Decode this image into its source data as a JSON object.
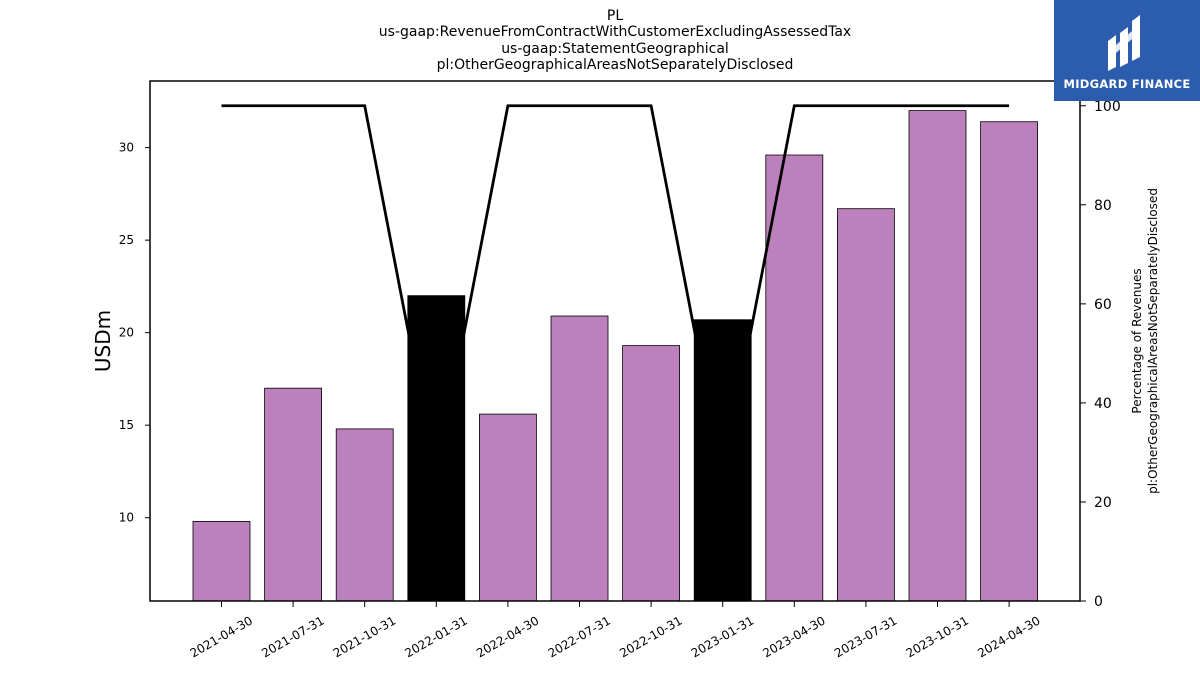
{
  "chart_data": {
    "type": "bar",
    "title_lines": [
      "PL",
      "us-gaap:RevenueFromContractWithCustomerExcludingAssessedTax",
      "us-gaap:StatementGeographical",
      "pl:OtherGeographicalAreasNotSeparatelyDisclosed"
    ],
    "categories": [
      "2021-04-30",
      "2021-07-31",
      "2021-10-31",
      "2022-01-31",
      "2022-04-30",
      "2022-07-31",
      "2022-10-31",
      "2023-01-31",
      "2023-04-30",
      "2023-07-31",
      "2023-10-31",
      "2024-04-30"
    ],
    "values": [
      9.8,
      17.0,
      14.8,
      22.0,
      15.6,
      20.9,
      19.3,
      20.7,
      29.6,
      26.7,
      32.0,
      31.4
    ],
    "bar_colors": [
      "#bc80bd",
      "#bc80bd",
      "#bc80bd",
      "#000000",
      "#bc80bd",
      "#bc80bd",
      "#bc80bd",
      "#000000",
      "#bc80bd",
      "#bc80bd",
      "#bc80bd",
      "#bc80bd"
    ],
    "line": {
      "values": [
        100,
        100,
        100,
        25,
        100,
        100,
        100,
        25,
        100,
        100,
        100,
        100
      ],
      "color": "#000000"
    },
    "ylabel": "USDm",
    "ylim": [
      5.5,
      33.6
    ],
    "yticks": [
      10,
      15,
      20,
      25,
      30
    ],
    "ylabel_right": [
      "Percentage of Revenues",
      "pl:OtherGeographicalAreasNotSeparatelyDisclosed"
    ],
    "ylim_right": [
      0,
      105
    ],
    "yticks_right": [
      0,
      20,
      40,
      60,
      80,
      100
    ],
    "grid": false
  },
  "logo": {
    "text": "MIDGARD FINANCE",
    "background": "#2b5cad"
  }
}
